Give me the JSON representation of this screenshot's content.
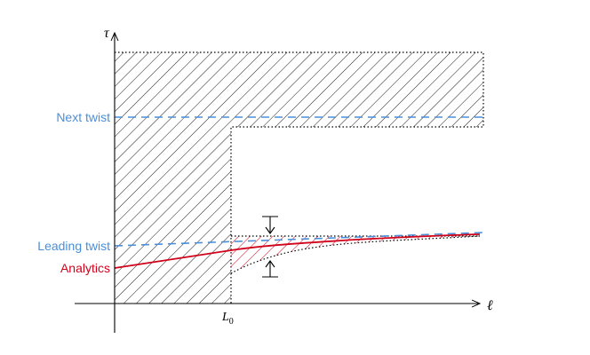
{
  "labels": {
    "y_axis": "τ",
    "x_axis": "ℓ",
    "x_tick": "L",
    "x_tick_sub": "0",
    "next_twist": "Next twist",
    "leading_twist": "Leading twist",
    "analytics": "Analytics"
  },
  "colors": {
    "blue": "#4a8fd8",
    "red": "#d0021b",
    "black": "#000000"
  }
}
